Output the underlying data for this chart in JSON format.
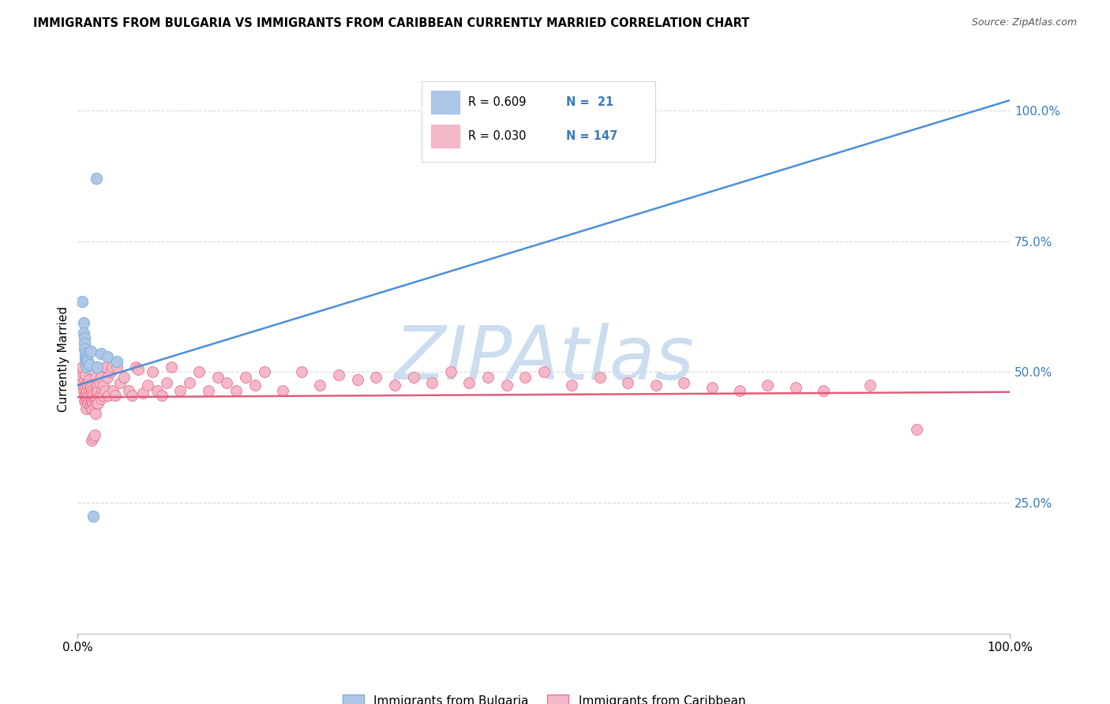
{
  "title": "IMMIGRANTS FROM BULGARIA VS IMMIGRANTS FROM CARIBBEAN CURRENTLY MARRIED CORRELATION CHART",
  "source": "Source: ZipAtlas.com",
  "ylabel": "Currently Married",
  "yticks": [
    0.0,
    0.25,
    0.5,
    0.75,
    1.0
  ],
  "ytick_labels": [
    "",
    "25.0%",
    "50.0%",
    "75.0%",
    "100.0%"
  ],
  "xticks": [
    0.0,
    1.0
  ],
  "xtick_labels": [
    "0.0%",
    "100.0%"
  ],
  "legend_entries": [
    {
      "label": "Immigrants from Bulgaria",
      "color": "#aec6e8",
      "edge_color": "#7bafd4",
      "R": 0.609,
      "N": 21
    },
    {
      "label": "Immigrants from Caribbean",
      "color": "#f4b8c8",
      "edge_color": "#e8728f",
      "R": 0.03,
      "N": 147
    }
  ],
  "bulgaria_scatter": {
    "color": "#aec6e8",
    "edge_color": "#7bafd4",
    "points": [
      [
        0.005,
        0.635
      ],
      [
        0.006,
        0.595
      ],
      [
        0.006,
        0.575
      ],
      [
        0.007,
        0.565
      ],
      [
        0.007,
        0.555
      ],
      [
        0.007,
        0.545
      ],
      [
        0.008,
        0.535
      ],
      [
        0.008,
        0.525
      ],
      [
        0.009,
        0.53
      ],
      [
        0.009,
        0.515
      ],
      [
        0.01,
        0.525
      ],
      [
        0.01,
        0.51
      ],
      [
        0.011,
        0.52
      ],
      [
        0.012,
        0.515
      ],
      [
        0.014,
        0.54
      ],
      [
        0.017,
        0.225
      ],
      [
        0.02,
        0.87
      ],
      [
        0.021,
        0.51
      ],
      [
        0.025,
        0.535
      ],
      [
        0.032,
        0.53
      ],
      [
        0.042,
        0.52
      ]
    ],
    "trendline_x": [
      0.0,
      1.0
    ],
    "trendline_y": [
      0.475,
      1.02
    ],
    "trendline_color": "#4a90d9"
  },
  "caribbean_scatter": {
    "color": "#f4b8c8",
    "edge_color": "#e8728f",
    "points": [
      [
        0.003,
        0.5
      ],
      [
        0.004,
        0.49
      ],
      [
        0.005,
        0.51
      ],
      [
        0.005,
        0.48
      ],
      [
        0.006,
        0.47
      ],
      [
        0.006,
        0.465
      ],
      [
        0.007,
        0.485
      ],
      [
        0.007,
        0.455
      ],
      [
        0.007,
        0.445
      ],
      [
        0.008,
        0.495
      ],
      [
        0.008,
        0.47
      ],
      [
        0.008,
        0.455
      ],
      [
        0.009,
        0.46
      ],
      [
        0.009,
        0.445
      ],
      [
        0.009,
        0.43
      ],
      [
        0.01,
        0.48
      ],
      [
        0.01,
        0.465
      ],
      [
        0.01,
        0.45
      ],
      [
        0.011,
        0.475
      ],
      [
        0.011,
        0.455
      ],
      [
        0.011,
        0.44
      ],
      [
        0.012,
        0.485
      ],
      [
        0.012,
        0.465
      ],
      [
        0.012,
        0.445
      ],
      [
        0.013,
        0.475
      ],
      [
        0.013,
        0.455
      ],
      [
        0.013,
        0.435
      ],
      [
        0.014,
        0.47
      ],
      [
        0.014,
        0.45
      ],
      [
        0.014,
        0.43
      ],
      [
        0.015,
        0.465
      ],
      [
        0.015,
        0.445
      ],
      [
        0.015,
        0.37
      ],
      [
        0.016,
        0.46
      ],
      [
        0.016,
        0.445
      ],
      [
        0.016,
        0.43
      ],
      [
        0.017,
        0.455
      ],
      [
        0.017,
        0.44
      ],
      [
        0.017,
        0.375
      ],
      [
        0.018,
        0.45
      ],
      [
        0.018,
        0.435
      ],
      [
        0.018,
        0.38
      ],
      [
        0.019,
        0.49
      ],
      [
        0.019,
        0.45
      ],
      [
        0.019,
        0.42
      ],
      [
        0.02,
        0.51
      ],
      [
        0.02,
        0.465
      ],
      [
        0.02,
        0.44
      ],
      [
        0.021,
        0.475
      ],
      [
        0.021,
        0.45
      ],
      [
        0.022,
        0.465
      ],
      [
        0.022,
        0.44
      ],
      [
        0.023,
        0.48
      ],
      [
        0.024,
        0.455
      ],
      [
        0.025,
        0.49
      ],
      [
        0.025,
        0.45
      ],
      [
        0.026,
        0.465
      ],
      [
        0.027,
        0.455
      ],
      [
        0.028,
        0.475
      ],
      [
        0.029,
        0.465
      ],
      [
        0.03,
        0.51
      ],
      [
        0.032,
        0.49
      ],
      [
        0.033,
        0.455
      ],
      [
        0.035,
        0.5
      ],
      [
        0.037,
        0.51
      ],
      [
        0.038,
        0.465
      ],
      [
        0.04,
        0.455
      ],
      [
        0.042,
        0.51
      ],
      [
        0.045,
        0.48
      ],
      [
        0.05,
        0.49
      ],
      [
        0.055,
        0.465
      ],
      [
        0.058,
        0.455
      ],
      [
        0.062,
        0.51
      ],
      [
        0.065,
        0.505
      ],
      [
        0.07,
        0.46
      ],
      [
        0.075,
        0.475
      ],
      [
        0.08,
        0.5
      ],
      [
        0.085,
        0.465
      ],
      [
        0.09,
        0.455
      ],
      [
        0.095,
        0.48
      ],
      [
        0.1,
        0.51
      ],
      [
        0.11,
        0.465
      ],
      [
        0.12,
        0.48
      ],
      [
        0.13,
        0.5
      ],
      [
        0.14,
        0.465
      ],
      [
        0.15,
        0.49
      ],
      [
        0.16,
        0.48
      ],
      [
        0.17,
        0.465
      ],
      [
        0.18,
        0.49
      ],
      [
        0.19,
        0.475
      ],
      [
        0.2,
        0.5
      ],
      [
        0.22,
        0.465
      ],
      [
        0.24,
        0.5
      ],
      [
        0.26,
        0.475
      ],
      [
        0.28,
        0.495
      ],
      [
        0.3,
        0.485
      ],
      [
        0.32,
        0.49
      ],
      [
        0.34,
        0.475
      ],
      [
        0.36,
        0.49
      ],
      [
        0.38,
        0.48
      ],
      [
        0.4,
        0.5
      ],
      [
        0.42,
        0.48
      ],
      [
        0.44,
        0.49
      ],
      [
        0.46,
        0.475
      ],
      [
        0.48,
        0.49
      ],
      [
        0.5,
        0.5
      ],
      [
        0.53,
        0.475
      ],
      [
        0.56,
        0.49
      ],
      [
        0.59,
        0.48
      ],
      [
        0.62,
        0.475
      ],
      [
        0.65,
        0.48
      ],
      [
        0.68,
        0.47
      ],
      [
        0.71,
        0.465
      ],
      [
        0.74,
        0.475
      ],
      [
        0.77,
        0.47
      ],
      [
        0.8,
        0.465
      ],
      [
        0.85,
        0.475
      ],
      [
        0.9,
        0.39
      ]
    ],
    "trendline_x": [
      0.0,
      1.0
    ],
    "trendline_y": [
      0.452,
      0.462
    ],
    "trendline_color": "#e05c7a"
  },
  "watermark_text": "ZIPAtlas",
  "watermark_color": "#ccddf0",
  "background_color": "#ffffff",
  "grid_color": "#d8d8d8",
  "xlim": [
    0.0,
    1.0
  ],
  "ylim": [
    0.0,
    1.05
  ]
}
